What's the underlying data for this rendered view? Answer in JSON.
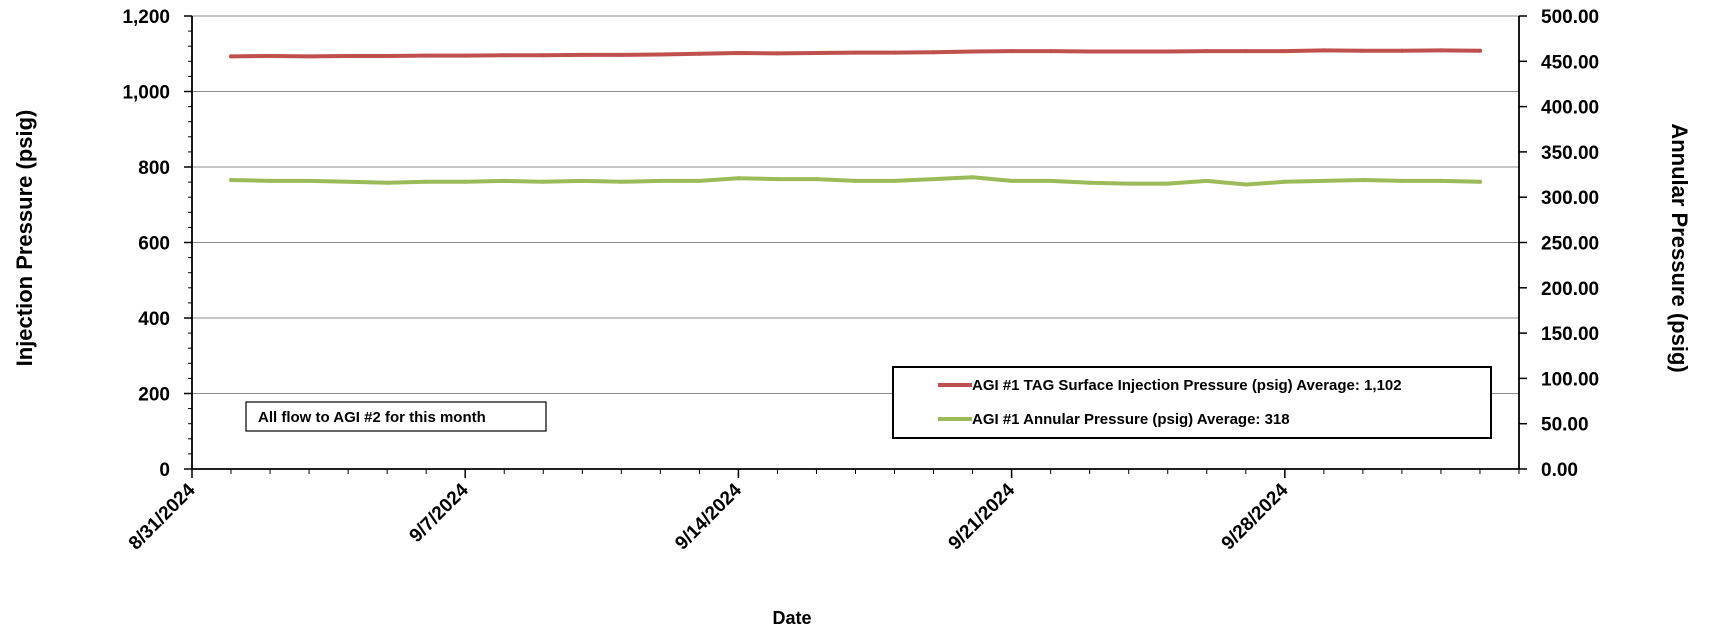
{
  "chart_data": {
    "type": "line",
    "xlabel": "Date",
    "ylabel_left": "Injection Pressure (psig)",
    "ylabel_right": "Annular Pressure (psig)",
    "x_range": [
      "2024-08-31",
      "2024-10-04"
    ],
    "x_ticks": [
      "8/31/2024",
      "9/7/2024",
      "9/14/2024",
      "9/21/2024",
      "9/28/2024"
    ],
    "y_left_range": [
      0,
      1200
    ],
    "y_left_ticks": [
      "0",
      "200",
      "400",
      "600",
      "800",
      "1,000",
      "1,200"
    ],
    "y_right_range": [
      0,
      500
    ],
    "y_right_ticks": [
      "0.00",
      "50.00",
      "100.00",
      "150.00",
      "200.00",
      "250.00",
      "300.00",
      "350.00",
      "400.00",
      "450.00",
      "500.00"
    ],
    "grid": true,
    "legend_position": "bottom-right",
    "annotation": "All flow to AGI #2 for this month",
    "series": [
      {
        "name": "AGI #1 TAG Surface Injection Pressure (psig) Average: 1,102",
        "axis": "left",
        "color": "#c0504d",
        "x": [
          "2024-09-01",
          "2024-09-02",
          "2024-09-03",
          "2024-09-04",
          "2024-09-05",
          "2024-09-06",
          "2024-09-07",
          "2024-09-08",
          "2024-09-09",
          "2024-09-10",
          "2024-09-11",
          "2024-09-12",
          "2024-09-13",
          "2024-09-14",
          "2024-09-15",
          "2024-09-16",
          "2024-09-17",
          "2024-09-18",
          "2024-09-19",
          "2024-09-20",
          "2024-09-21",
          "2024-09-22",
          "2024-09-23",
          "2024-09-24",
          "2024-09-25",
          "2024-09-26",
          "2024-09-27",
          "2024-09-28",
          "2024-09-29",
          "2024-09-30",
          "2024-10-01",
          "2024-10-02",
          "2024-10-03"
        ],
        "values": [
          1093,
          1094,
          1093,
          1094,
          1094,
          1095,
          1095,
          1096,
          1096,
          1097,
          1097,
          1098,
          1100,
          1102,
          1101,
          1102,
          1103,
          1103,
          1104,
          1106,
          1107,
          1107,
          1106,
          1106,
          1106,
          1107,
          1107,
          1107,
          1109,
          1108,
          1108,
          1109,
          1108
        ]
      },
      {
        "name": "AGI #1 Annular Pressure (psig) Average: 318",
        "axis": "right",
        "color": "#9bbb59",
        "x": [
          "2024-09-01",
          "2024-09-02",
          "2024-09-03",
          "2024-09-04",
          "2024-09-05",
          "2024-09-06",
          "2024-09-07",
          "2024-09-08",
          "2024-09-09",
          "2024-09-10",
          "2024-09-11",
          "2024-09-12",
          "2024-09-13",
          "2024-09-14",
          "2024-09-15",
          "2024-09-16",
          "2024-09-17",
          "2024-09-18",
          "2024-09-19",
          "2024-09-20",
          "2024-09-21",
          "2024-09-22",
          "2024-09-23",
          "2024-09-24",
          "2024-09-25",
          "2024-09-26",
          "2024-09-27",
          "2024-09-28",
          "2024-09-29",
          "2024-09-30",
          "2024-10-01",
          "2024-10-02",
          "2024-10-03"
        ],
        "values": [
          319,
          318,
          318,
          317,
          316,
          317,
          317,
          318,
          317,
          318,
          317,
          318,
          318,
          321,
          320,
          320,
          318,
          318,
          320,
          322,
          318,
          318,
          316,
          315,
          315,
          318,
          314,
          317,
          318,
          319,
          318,
          318,
          317
        ]
      }
    ]
  }
}
